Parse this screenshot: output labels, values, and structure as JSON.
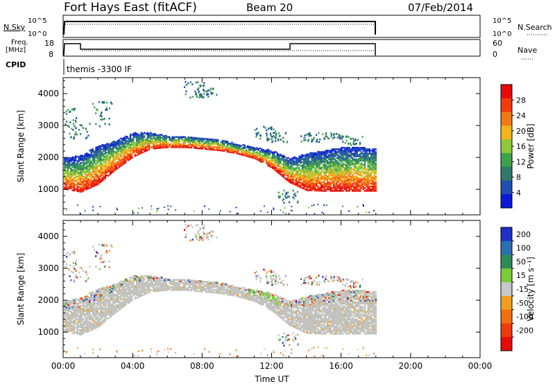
{
  "header": {
    "station": "Fort Hays East (fitACF)",
    "beam": "Beam 20",
    "date": "07/Feb/2014"
  },
  "meta_panels": {
    "nsky_label": "N.Sky",
    "nsky_ticks": [
      "10^5",
      "10^0"
    ],
    "nsearch_label": "N.Search",
    "nsearch_ticks": [
      "10^5",
      "10^0"
    ],
    "freq_label": "Freq.",
    "freq_unit": "[MHz]",
    "freq_ticks": [
      "18",
      "8"
    ],
    "nave_label": "Nave",
    "nave_ticks": [
      "60",
      "0"
    ],
    "cpid_label": "CPID",
    "cpid_text": "themis -3300 IF"
  },
  "chart_data": [
    {
      "type": "heatmap",
      "title": "",
      "ylabel": "Slant Range [km]",
      "ylim": [
        200,
        4500
      ],
      "yticks": [
        "1000",
        "2000",
        "3000",
        "4000"
      ],
      "xlim_hours": [
        0,
        24
      ],
      "colorbar": {
        "label": "Power [dB]",
        "ticks": [
          "4",
          "8",
          "12",
          "16",
          "20",
          "24",
          "28"
        ],
        "range": [
          0,
          32
        ],
        "colors": [
          "#0a1ad8",
          "#1f4fb0",
          "#2f7a6a",
          "#3fa24a",
          "#8cc83a",
          "#f2b41a",
          "#f27a14",
          "#f23a0e",
          "#e80a0a"
        ]
      },
      "scatter_band": {
        "lower_km": [
          [
            0,
            1050
          ],
          [
            1,
            950
          ],
          [
            2,
            1200
          ],
          [
            3,
            1650
          ],
          [
            4,
            2050
          ],
          [
            5,
            2300
          ],
          [
            6,
            2350
          ],
          [
            7,
            2350
          ],
          [
            8,
            2300
          ],
          [
            9,
            2250
          ],
          [
            10,
            2150
          ],
          [
            11,
            2000
          ],
          [
            12,
            1700
          ],
          [
            13,
            1250
          ],
          [
            14,
            1000
          ],
          [
            15,
            980
          ],
          [
            16,
            980
          ],
          [
            17,
            980
          ],
          [
            18,
            980
          ]
        ],
        "upper_km": [
          [
            0,
            2000
          ],
          [
            1,
            2100
          ],
          [
            2,
            2400
          ],
          [
            3,
            2550
          ],
          [
            4,
            2800
          ],
          [
            5,
            2800
          ],
          [
            6,
            2700
          ],
          [
            7,
            2700
          ],
          [
            8,
            2650
          ],
          [
            9,
            2600
          ],
          [
            10,
            2450
          ],
          [
            11,
            2350
          ],
          [
            12,
            2250
          ],
          [
            13,
            2000
          ],
          [
            14,
            2150
          ],
          [
            15,
            2250
          ],
          [
            16,
            2350
          ],
          [
            17,
            2350
          ],
          [
            18,
            2300
          ]
        ]
      }
    },
    {
      "type": "heatmap",
      "title": "",
      "ylabel": "Slant Range [km]",
      "ylim": [
        200,
        4500
      ],
      "yticks": [
        "1000",
        "2000",
        "3000",
        "4000"
      ],
      "xlim_hours": [
        0,
        24
      ],
      "xticks": [
        "00:00",
        "04:00",
        "08:00",
        "12:00",
        "16:00",
        "20:00",
        "00:00"
      ],
      "xlabel": "Time UT",
      "colorbar": {
        "label": "Velocity [m s⁻¹]",
        "ticks": [
          "200",
          "100",
          "50",
          "15",
          "-15",
          "-50",
          "-100",
          "-200"
        ],
        "colors": [
          "#1e32c8",
          "#2a6fb0",
          "#2f8a5a",
          "#7ccc3a",
          "#c8c8c8",
          "#f0a020",
          "#f07010",
          "#f03a0a",
          "#e80a0a"
        ]
      }
    }
  ],
  "colors": {
    "ground_scatter": "#c0c0bc"
  }
}
